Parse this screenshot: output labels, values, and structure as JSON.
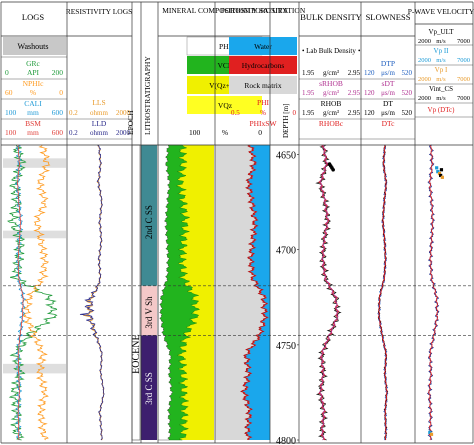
{
  "tracks": {
    "logs": {
      "title": "LOGS"
    },
    "resistivity": {
      "title": "RESISTIVITY LOGS"
    },
    "epoch": {
      "title": "EPOCH"
    },
    "litho": {
      "title": "LITHOSTRATIGRAPHY"
    },
    "mineral": {
      "title": "MINERAL COMPOSITION POROSITY"
    },
    "porosity": {
      "title": "POROSITY SATURATION"
    },
    "depth": {
      "title": "DEPTH [m]"
    },
    "bulk": {
      "title": "BULK DENSITY"
    },
    "slowness": {
      "title": "SLOWNESS"
    },
    "pwave": {
      "title": "P-WAVE VELOCITY"
    }
  },
  "headers": {
    "washouts": "Washouts",
    "grc": "GRc",
    "api": "API",
    "api_min": "0",
    "api_max": "200",
    "nphic": "NPHIc",
    "nphi_min": "60",
    "nphi_pct": "%",
    "nphi_max": "0",
    "cali": "CALI",
    "cali_min": "100",
    "cali_unit": "mm",
    "cali_max": "600",
    "bsm": "BSM",
    "bsm_min": "100",
    "bsm_unit": "mm",
    "bsm_max": "600",
    "lls": "LLS",
    "lls_min": "0.2",
    "lls_unit": "ohmm",
    "lls_max": "2000",
    "lld": "LLD",
    "lld_min": "0.2",
    "lld_unit": "ohmm",
    "lld_max": "2000",
    "phi": "PHI",
    "vcl": "VCL",
    "vqzca": "V(Qz+Ca)",
    "vqz": "VQz",
    "min_scale_left": "100",
    "min_scale_unit": "%",
    "min_scale_right": "0",
    "water": "Water",
    "hydrocarbons": "Hydrocarbons",
    "rock_matrix": "Rock matrix",
    "por_phi": "PHI",
    "phixsw": "PHIxSW",
    "por_scale_left": "0.5",
    "por_scale_unit": "%",
    "por_scale_right": "0",
    "lab": "Lab Bulk Density",
    "bd1_min": "1.95",
    "bd1_unit": "g/cm³",
    "bd1_max": "2.95",
    "srhob": "sRHOB",
    "bd2_min": "1.95",
    "bd2_unit": "g/cm³",
    "bd2_max": "2.95",
    "rhob": "RHOB",
    "bd3_min": "1.95",
    "bd3_unit": "g/cm³",
    "bd3_max": "2.95",
    "rhobc": "RHOBc",
    "dtp": "DTP",
    "sl1_min": "120",
    "sl1_unit": "μs/m",
    "sl1_max": "520",
    "sdt": "sDT",
    "sl2_min": "120",
    "sl2_unit": "μs/m",
    "sl2_max": "520",
    "dt": "DT",
    "sl3_min": "120",
    "sl3_unit": "μs/m",
    "sl3_max": "520",
    "dtc": "DTc",
    "vp_ult": "Vp_ULT",
    "v1_min": "2000",
    "v1_unit": "m/s",
    "v1_max": "7000",
    "vp_ii": "Vp II",
    "v2_min": "2000",
    "v2_unit": "m/s",
    "v2_max": "7000",
    "vp_i": "Vp I",
    "v3_min": "2000",
    "v3_unit": "m/s",
    "v3_max": "7000",
    "vint": "Vint_CS",
    "v4_min": "2000",
    "v4_unit": "m/s",
    "v4_max": "7000",
    "vp_dtc": "Vp (DTc)"
  },
  "zones": {
    "epoch": "EOCENE",
    "unit1": "2nd C SS",
    "unit2": "3rd V Sh",
    "unit3": "3rd C SS"
  },
  "colors": {
    "unit1": "#3f8a93",
    "unit2": "#f4c8c8",
    "unit3": "#3d1f6e",
    "phi": "#ffffff",
    "vcl": "#22b41e",
    "vqzca": "#f0f000",
    "vqz": "#ffff22",
    "water": "#1aa7ec",
    "hydro": "#e02020",
    "matrix": "#d8d8d8",
    "grc": "#1f9a3a",
    "nphic": "#ff9a1e",
    "cali": "#1f9ad6",
    "bsm": "#e0403a",
    "lls": "#e89a2a",
    "lld": "#2a2a8a",
    "washout": "#c8c8c8"
  },
  "chart_data": {
    "type": "well-log",
    "depth_unit": "m",
    "depth_range": [
      4645,
      4800
    ],
    "depth_ticks": [
      4650,
      4700,
      4750,
      4800
    ],
    "zone_tops": [
      {
        "name": "2nd C SS",
        "top": 4645,
        "base": 4719
      },
      {
        "name": "3rd V Sh",
        "top": 4719,
        "base": 4745
      },
      {
        "name": "3rd C SS",
        "top": 4745,
        "base": 4800
      }
    ],
    "epoch": {
      "name": "EOCENE",
      "top": 4645,
      "base": 4800
    },
    "sampled_depths": [
      4645,
      4655,
      4665,
      4675,
      4685,
      4695,
      4705,
      4715,
      4725,
      4735,
      4745,
      4755,
      4765,
      4775,
      4785,
      4795,
      4800
    ],
    "series": [
      {
        "name": "GRc",
        "unit": "API",
        "range": [
          0,
          200
        ],
        "values": [
          40,
          60,
          35,
          45,
          30,
          55,
          50,
          40,
          150,
          160,
          80,
          40,
          55,
          35,
          45,
          40,
          60
        ]
      },
      {
        "name": "NPHIc",
        "unit": "%",
        "range": [
          60,
          0
        ],
        "values": [
          22,
          18,
          25,
          20,
          28,
          24,
          20,
          22,
          35,
          38,
          30,
          22,
          25,
          20,
          24,
          22,
          20
        ]
      },
      {
        "name": "CALI",
        "unit": "mm",
        "range": [
          100,
          600
        ],
        "values": [
          220,
          230,
          215,
          225,
          240,
          230,
          220,
          225,
          260,
          255,
          235,
          220,
          225,
          230,
          220,
          225,
          225
        ]
      },
      {
        "name": "LLD",
        "unit": "ohmm",
        "range": [
          0.2,
          2000
        ],
        "values": [
          20,
          25,
          18,
          30,
          22,
          28,
          20,
          24,
          6,
          5,
          12,
          30,
          25,
          40,
          22,
          28,
          30
        ]
      },
      {
        "name": "VCL",
        "unit": "fraction",
        "range": [
          0,
          1
        ],
        "values": [
          0.25,
          0.3,
          0.2,
          0.28,
          0.35,
          0.3,
          0.25,
          0.3,
          0.6,
          0.62,
          0.4,
          0.2,
          0.25,
          0.22,
          0.28,
          0.25,
          0.25
        ]
      },
      {
        "name": "PHI",
        "unit": "fraction",
        "range": [
          0.5,
          0
        ],
        "values": [
          0.18,
          0.15,
          0.2,
          0.17,
          0.14,
          0.16,
          0.18,
          0.16,
          0.06,
          0.05,
          0.1,
          0.22,
          0.2,
          0.24,
          0.19,
          0.21,
          0.2
        ]
      },
      {
        "name": "RHOB",
        "unit": "g/cm³",
        "range": [
          1.95,
          2.95
        ],
        "values": [
          2.35,
          2.4,
          2.3,
          2.38,
          2.42,
          2.36,
          2.34,
          2.38,
          2.55,
          2.58,
          2.45,
          2.32,
          2.35,
          2.3,
          2.36,
          2.33,
          2.35
        ]
      },
      {
        "name": "DT",
        "unit": "μs/m",
        "range": [
          120,
          520
        ],
        "values": [
          300,
          290,
          310,
          295,
          285,
          298,
          305,
          295,
          260,
          255,
          280,
          310,
          300,
          315,
          302,
          308,
          305
        ]
      },
      {
        "name": "Vint_CS",
        "unit": "m/s",
        "range": [
          2000,
          7000
        ],
        "values": [
          3400,
          3500,
          3300,
          3450,
          3550,
          3450,
          3350,
          3450,
          3900,
          3950,
          3650,
          3300,
          3400,
          3250,
          3380,
          3320,
          3350
        ]
      }
    ]
  }
}
